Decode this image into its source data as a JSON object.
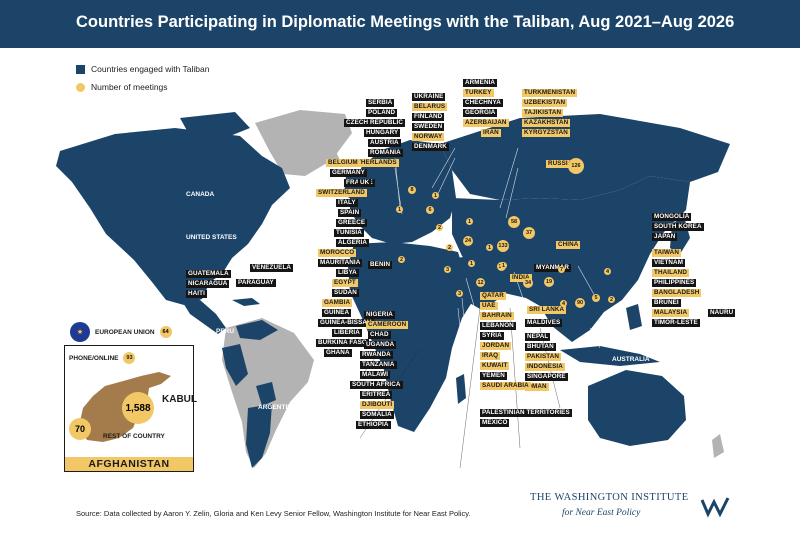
{
  "title": "Countries Participating in Diplomatic Meetings with the Taliban, Aug 2021–Aug 2026",
  "legend": {
    "engaged": "Countries engaged with Taliban",
    "meetings": "Number of meetings"
  },
  "colors": {
    "header": "#1b4468",
    "engaged": "#1b4468",
    "not_engaged": "#b3b3b3",
    "ocean": "#ffffff",
    "highlight": "#f2c766",
    "label_dark": "#151515",
    "afghanistan": "#a47b4a"
  },
  "eu": {
    "label": "EUROPEAN UNION",
    "count": "64"
  },
  "afghanistan": {
    "phone_label": "PHONE/ONLINE",
    "phone_count": "93",
    "kabul_count": "1,588",
    "kabul_label": "KABUL",
    "rest_count": "70",
    "rest_label": "REST OF COUNTRY",
    "banner": "AFGHANISTAN"
  },
  "source": "Source: Data collected by Aaron Y. Zelin, Gloria and Ken Levy Senior Fellow, Washington Institute for Near East Policy.",
  "logo": {
    "line1": "THE WASHINGTON INSTITUTE",
    "line2": "for Near East Policy"
  },
  "plain_labels": [
    "CANADA",
    "UNITED STATES",
    "PERU",
    "ARGENTINA",
    "AUSTRALIA"
  ],
  "labels": [
    {
      "t": "SERBIA",
      "hl": false
    },
    {
      "t": "POLAND",
      "hl": false
    },
    {
      "t": "CZECH REPUBLIC",
      "hl": false
    },
    {
      "t": "HUNGARY",
      "hl": false
    },
    {
      "t": "AUSTRIA",
      "hl": false
    },
    {
      "t": "ROMANIA",
      "hl": false
    },
    {
      "t": "NETHERLANDS",
      "hl": true
    },
    {
      "t": "BELGIUM",
      "hl": true
    },
    {
      "t": "GERMANY",
      "hl": false
    },
    {
      "t": "FRANCE",
      "hl": false
    },
    {
      "t": "UK",
      "hl": false
    },
    {
      "t": "SWITZERLAND",
      "hl": true
    },
    {
      "t": "ITALY",
      "hl": false
    },
    {
      "t": "SPAIN",
      "hl": false
    },
    {
      "t": "GREECE",
      "hl": false
    },
    {
      "t": "TUNISIA",
      "hl": false
    },
    {
      "t": "ALGERIA",
      "hl": false
    },
    {
      "t": "MOROCCO",
      "hl": true
    },
    {
      "t": "MAURITANIA",
      "hl": false
    },
    {
      "t": "LIBYA",
      "hl": false
    },
    {
      "t": "EGYPT",
      "hl": true
    },
    {
      "t": "SUDAN",
      "hl": false
    },
    {
      "t": "GAMBIA",
      "hl": true
    },
    {
      "t": "GUINEA",
      "hl": false
    },
    {
      "t": "GUINEA-BISSAU",
      "hl": false
    },
    {
      "t": "LIBERIA",
      "hl": false
    },
    {
      "t": "BURKINA FASO",
      "hl": false
    },
    {
      "t": "GHANA",
      "hl": false
    },
    {
      "t": "BENIN",
      "hl": false
    },
    {
      "t": "NIGERIA",
      "hl": false
    },
    {
      "t": "CAMEROON",
      "hl": true
    },
    {
      "t": "CHAD",
      "hl": false
    },
    {
      "t": "UGANDA",
      "hl": false
    },
    {
      "t": "RWANDA",
      "hl": false
    },
    {
      "t": "TANZANIA",
      "hl": false
    },
    {
      "t": "MALAWI",
      "hl": false
    },
    {
      "t": "SOUTH AFRICA",
      "hl": false
    },
    {
      "t": "ERITREA",
      "hl": false
    },
    {
      "t": "DJIBOUTI",
      "hl": true
    },
    {
      "t": "SOMALIA",
      "hl": false
    },
    {
      "t": "ETHIOPIA",
      "hl": false
    },
    {
      "t": "UKRAINE",
      "hl": false
    },
    {
      "t": "BELARUS",
      "hl": true
    },
    {
      "t": "FINLAND",
      "hl": false
    },
    {
      "t": "SWEDEN",
      "hl": false
    },
    {
      "t": "NORWAY",
      "hl": true
    },
    {
      "t": "DENMARK",
      "hl": false
    },
    {
      "t": "ARMENIA",
      "hl": false
    },
    {
      "t": "TURKEY",
      "hl": true
    },
    {
      "t": "CHECHNYA",
      "hl": false
    },
    {
      "t": "GEORGIA",
      "hl": false
    },
    {
      "t": "AZERBAIJAN",
      "hl": true
    },
    {
      "t": "IRAN",
      "hl": true
    },
    {
      "t": "TURKMENISTAN",
      "hl": true
    },
    {
      "t": "UZBEKISTAN",
      "hl": true
    },
    {
      "t": "TAJIKISTAN",
      "hl": true
    },
    {
      "t": "KAZAKHSTAN",
      "hl": true
    },
    {
      "t": "KYRGYZSTAN",
      "hl": true
    },
    {
      "t": "RUSSIA",
      "hl": true
    },
    {
      "t": "MONGOLIA",
      "hl": false
    },
    {
      "t": "SOUTH KOREA",
      "hl": false
    },
    {
      "t": "JAPAN",
      "hl": false
    },
    {
      "t": "CHINA",
      "hl": true
    },
    {
      "t": "MYANMAR",
      "hl": false
    },
    {
      "t": "TAIWAN",
      "hl": true
    },
    {
      "t": "VIETNAM",
      "hl": false
    },
    {
      "t": "THAILAND",
      "hl": true
    },
    {
      "t": "PHILIPPINES",
      "hl": false
    },
    {
      "t": "BANGLADESH",
      "hl": true
    },
    {
      "t": "BRUNEI",
      "hl": false
    },
    {
      "t": "MALAYSIA",
      "hl": true
    },
    {
      "t": "NAURU",
      "hl": false
    },
    {
      "t": "TIMOR-LESTE",
      "hl": false
    },
    {
      "t": "INDIA",
      "hl": true
    },
    {
      "t": "SRI LANKA",
      "hl": true
    },
    {
      "t": "MALDIVES",
      "hl": false
    },
    {
      "t": "NEPAL",
      "hl": false
    },
    {
      "t": "BHUTAN",
      "hl": false
    },
    {
      "t": "PAKISTAN",
      "hl": true
    },
    {
      "t": "INDONESIA",
      "hl": true
    },
    {
      "t": "SINGAPORE",
      "hl": false
    },
    {
      "t": "OMAN",
      "hl": true
    },
    {
      "t": "QATAR",
      "hl": true
    },
    {
      "t": "UAE",
      "hl": true
    },
    {
      "t": "BAHRAIN",
      "hl": true
    },
    {
      "t": "LEBANON",
      "hl": false
    },
    {
      "t": "SYRIA",
      "hl": false
    },
    {
      "t": "JORDAN",
      "hl": true
    },
    {
      "t": "IRAQ",
      "hl": true
    },
    {
      "t": "KUWAIT",
      "hl": true
    },
    {
      "t": "YEMEN",
      "hl": false
    },
    {
      "t": "SAUDI ARABIA",
      "hl": true
    },
    {
      "t": "PALESTINIAN TERRITORIES",
      "hl": false
    },
    {
      "t": "MEXICO",
      "hl": false
    },
    {
      "t": "GUATEMALA",
      "hl": false
    },
    {
      "t": "NICARAGUA",
      "hl": false
    },
    {
      "t": "HAITI",
      "hl": false
    },
    {
      "t": "VENEZUELA",
      "hl": false
    },
    {
      "t": "PARAGUAY",
      "hl": false
    }
  ],
  "bubbles": [
    "126",
    "133",
    "58",
    "37",
    "24",
    "19",
    "12",
    "90",
    "34",
    "10",
    "8",
    "6",
    "5",
    "4",
    "3",
    "2",
    "1",
    "1",
    "2",
    "3",
    "1",
    "4",
    "2",
    "1",
    "2",
    "7",
    "1",
    "1"
  ]
}
